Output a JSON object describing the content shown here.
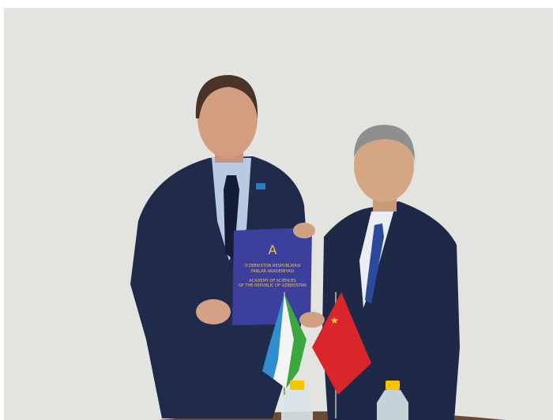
{
  "folder": {
    "lines": [
      "O'ZBEKISTON RESPUBLIKASI",
      "FANLAR AKADEMIYASI"
    ],
    "english": [
      "ACADEMY OF SCIENCES",
      "OF THE REPUBLIC OF UZBEKISTAN"
    ]
  }
}
